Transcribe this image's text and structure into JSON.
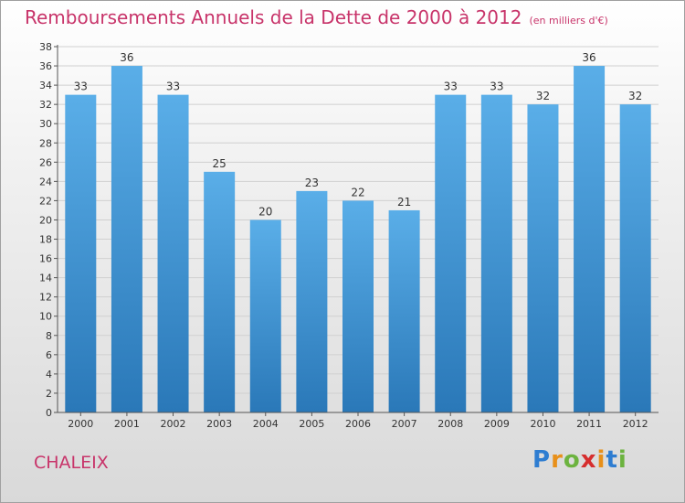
{
  "title": "Remboursements Annuels de la Dette de 2000 à 2012",
  "subtitle": "(en milliers d'€)",
  "commune": "CHALEIX",
  "logo": {
    "letters": [
      "P",
      "r",
      "o",
      "x",
      "i",
      "t",
      "i"
    ],
    "colors": [
      "#2e7dd1",
      "#e8901a",
      "#6cb33f",
      "#d62e2e",
      "#e8901a",
      "#2e7dd1",
      "#6cb33f"
    ]
  },
  "colors": {
    "bar_top": "#5aaee8",
    "bar_bottom": "#2a78b8",
    "title": "#c8346a",
    "grid": "#d0d0d0"
  },
  "chart_data": {
    "type": "bar",
    "categories": [
      "2000",
      "2001",
      "2002",
      "2003",
      "2004",
      "2005",
      "2006",
      "2007",
      "2008",
      "2009",
      "2010",
      "2011",
      "2012"
    ],
    "values": [
      33,
      36,
      33,
      25,
      20,
      23,
      22,
      21,
      33,
      33,
      32,
      36,
      32
    ],
    "ylim": [
      0,
      38
    ],
    "yticks": [
      0,
      2,
      4,
      6,
      8,
      10,
      12,
      14,
      16,
      18,
      20,
      22,
      24,
      26,
      28,
      30,
      32,
      34,
      36,
      38
    ],
    "grid": true,
    "data_labels": true
  }
}
